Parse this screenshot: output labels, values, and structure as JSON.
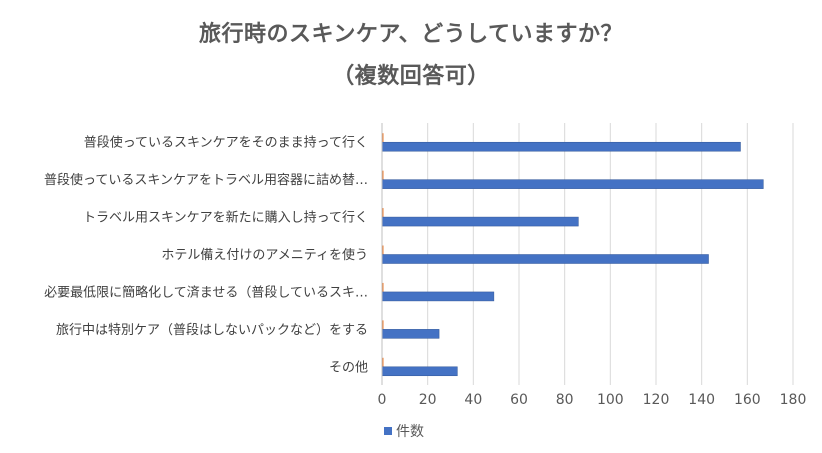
{
  "chart_data": {
    "type": "bar",
    "orientation": "horizontal",
    "title_lines": [
      "旅行時のスキンケア、どうしていますか？",
      "（複数回答可）"
    ],
    "categories": [
      "普段使っているスキンケアをそのまま持って行く",
      "普段使っているスキンケアをトラベル用容器に詰め替…",
      "トラベル用スキンケアを新たに購入し持って行く",
      "ホテル備え付けのアメニティを使う",
      "必要最低限に簡略化して済ませる（普段しているスキ…",
      "旅行中は特別ケア（普段はしないパックなど）をする",
      "その他"
    ],
    "series": [
      {
        "name": "件数",
        "values": [
          157,
          167,
          86,
          143,
          49,
          25,
          33
        ],
        "color": "#4472C4"
      },
      {
        "name": "",
        "values": [
          0.5,
          0.5,
          0.5,
          0.5,
          0.5,
          0.5,
          0.5
        ],
        "color": "#ED7D31"
      }
    ],
    "x_ticks": [
      "0",
      "20",
      "40",
      "60",
      "80",
      "100",
      "120",
      "140",
      "160",
      "180"
    ],
    "xlim": [
      0,
      180
    ],
    "grid": true,
    "legend_position": "bottom-left"
  }
}
